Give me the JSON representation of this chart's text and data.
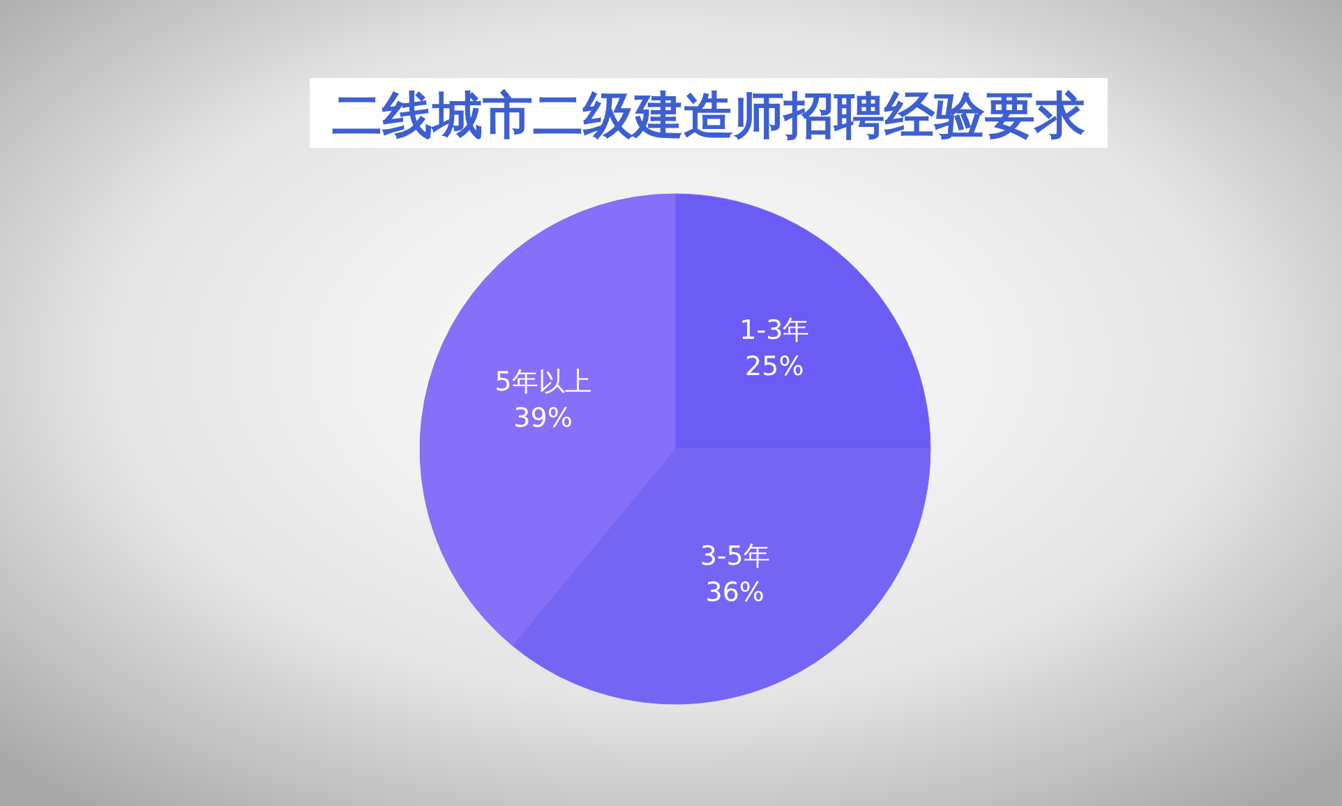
{
  "chart_data": {
    "type": "pie",
    "title": "二线城市二级建造师招聘经验要求",
    "categories": [
      "1-3年",
      "3-5年",
      "5年以上"
    ],
    "values": [
      25,
      36,
      39
    ],
    "colors": [
      "#6c5cf6",
      "#7565f4",
      "#8670fa"
    ],
    "value_labels": [
      "25%",
      "36%",
      "39%"
    ]
  }
}
